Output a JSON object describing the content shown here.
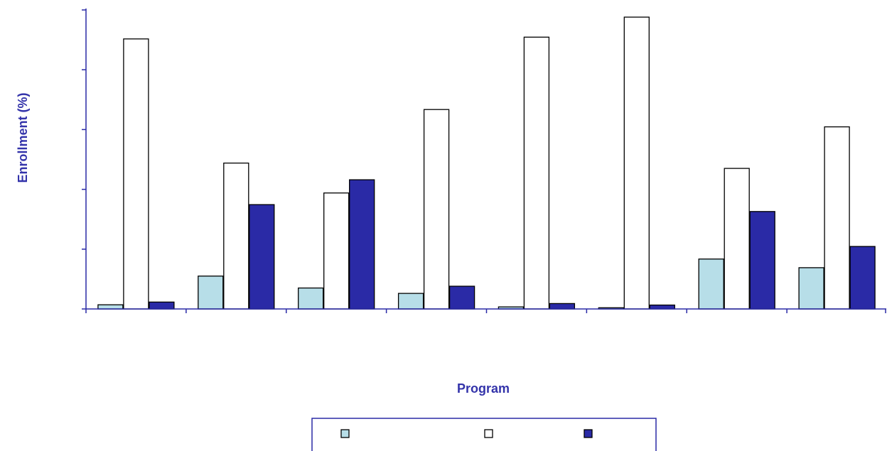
{
  "chart_data": {
    "type": "bar",
    "title": "",
    "xlabel": "Program",
    "ylabel": "Enrollment (%)",
    "categories": [
      "",
      "",
      "",
      "",
      "",
      "",
      "",
      ""
    ],
    "ylim": [
      0,
      100
    ],
    "grid": false,
    "legend_position": "bottom",
    "series": [
      {
        "color": "#b7dee8",
        "values": [
          1.4,
          11,
          7,
          5.2,
          0.7,
          0.4,
          16.7,
          13.8
        ]
      },
      {
        "color": "#ffffff",
        "values": [
          90.3,
          48.8,
          38.8,
          66.7,
          90.9,
          97.6,
          47,
          60.9
        ]
      },
      {
        "color": "#2a2aa6",
        "values": [
          2.3,
          34.9,
          43.2,
          7.6,
          1.8,
          1.3,
          32.6,
          20.9
        ]
      }
    ]
  },
  "colors": {
    "axis": "#2a2aa6",
    "text": "#3333aa",
    "border": "#000000"
  }
}
